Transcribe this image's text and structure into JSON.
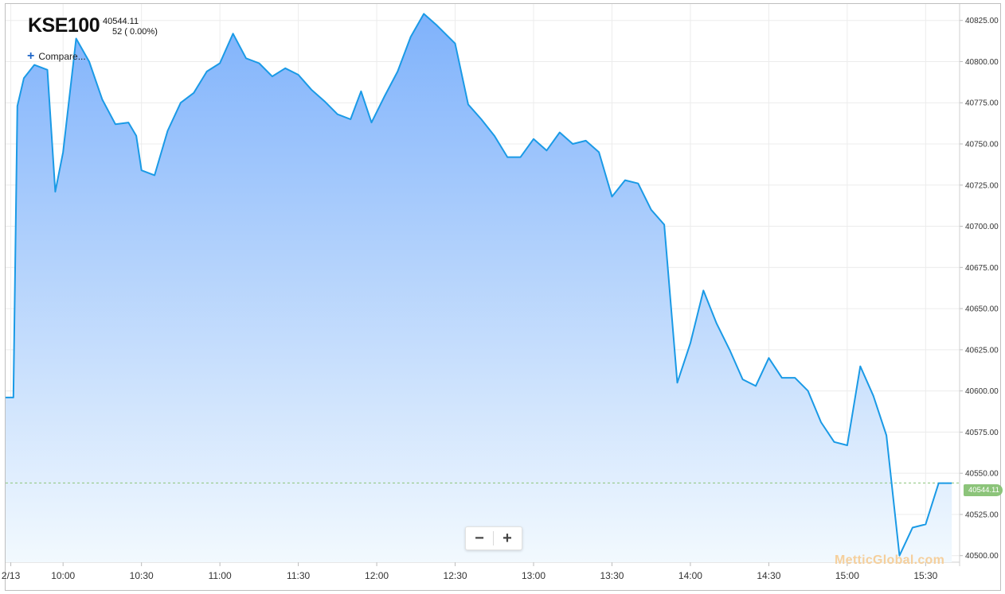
{
  "header": {
    "ticker": "KSE100",
    "price": "40544.11",
    "change": "52 ( 0.00%)",
    "compare_label": "Compare..."
  },
  "zoom": {
    "minus_label": "−",
    "plus_label": "+"
  },
  "watermark": "MetticGlobal.com",
  "last_value_label": "40544.11",
  "colors": {
    "line": "#1a9ae6",
    "fill_top": "#7fb2fb",
    "fill_bottom": "#f2f9fe",
    "grid": "#ececec",
    "last_tag": "#8cc47a",
    "last_line": "#8cc47a"
  },
  "chart_data": {
    "type": "area",
    "title": "KSE100",
    "x_tick_labels": [
      "2/13",
      "10:00",
      "10:30",
      "11:00",
      "11:30",
      "12:00",
      "12:30",
      "13:00",
      "13:30",
      "14:00",
      "14:30",
      "15:00",
      "15:30"
    ],
    "x_ticks": [
      0,
      20,
      50,
      80,
      110,
      140,
      170,
      200,
      230,
      260,
      290,
      320,
      350
    ],
    "x_range": [
      -2,
      363
    ],
    "x_unit": "minutes after 09:40",
    "y_tick_labels": [
      "40500.00",
      "40525.00",
      "40550.00",
      "40575.00",
      "40600.00",
      "40625.00",
      "40650.00",
      "40675.00",
      "40700.00",
      "40725.00",
      "40750.00",
      "40775.00",
      "40800.00",
      "40825.00"
    ],
    "ylim": [
      40496,
      40835
    ],
    "last_value": 40544.11,
    "grid": true,
    "series": [
      {
        "x": [
          -2,
          1,
          2.5,
          5,
          9,
          14,
          17,
          20,
          25,
          30,
          35,
          40,
          45,
          48,
          50,
          55,
          60,
          65,
          70,
          75,
          80,
          85,
          90,
          95,
          100,
          105,
          110,
          115,
          120,
          125,
          130,
          134,
          138,
          143,
          148,
          153,
          158,
          163,
          170,
          175,
          180,
          185,
          190,
          195,
          200,
          205,
          210,
          215,
          220,
          225,
          230,
          235,
          240,
          245,
          250,
          255,
          260,
          265,
          270,
          275,
          280,
          285,
          290,
          295,
          300,
          305,
          310,
          315,
          320,
          325,
          330,
          335,
          340,
          345,
          350,
          355,
          360
        ],
        "y": [
          40596,
          40596,
          40773,
          40790,
          40798,
          40795,
          40721,
          40745,
          40814,
          40800,
          40777,
          40762,
          40763,
          40755,
          40734,
          40731,
          40758,
          40775,
          40781,
          40794,
          40799,
          40817,
          40802,
          40799,
          40791,
          40796,
          40792,
          40783,
          40776,
          40768,
          40765,
          40782,
          40763,
          40779,
          40794,
          40815,
          40829,
          40822,
          40811,
          40774,
          40765,
          40755,
          40742,
          40742,
          40753,
          40746,
          40757,
          40750,
          40752,
          40745,
          40718,
          40728,
          40726,
          40710,
          40701,
          40605,
          40629,
          40661,
          40641,
          40625,
          40607,
          40603,
          40620,
          40608,
          40608,
          40600,
          40581,
          40569,
          40567,
          40615,
          40597,
          40573,
          40500,
          40517,
          40519,
          40544,
          40544
        ]
      }
    ]
  }
}
